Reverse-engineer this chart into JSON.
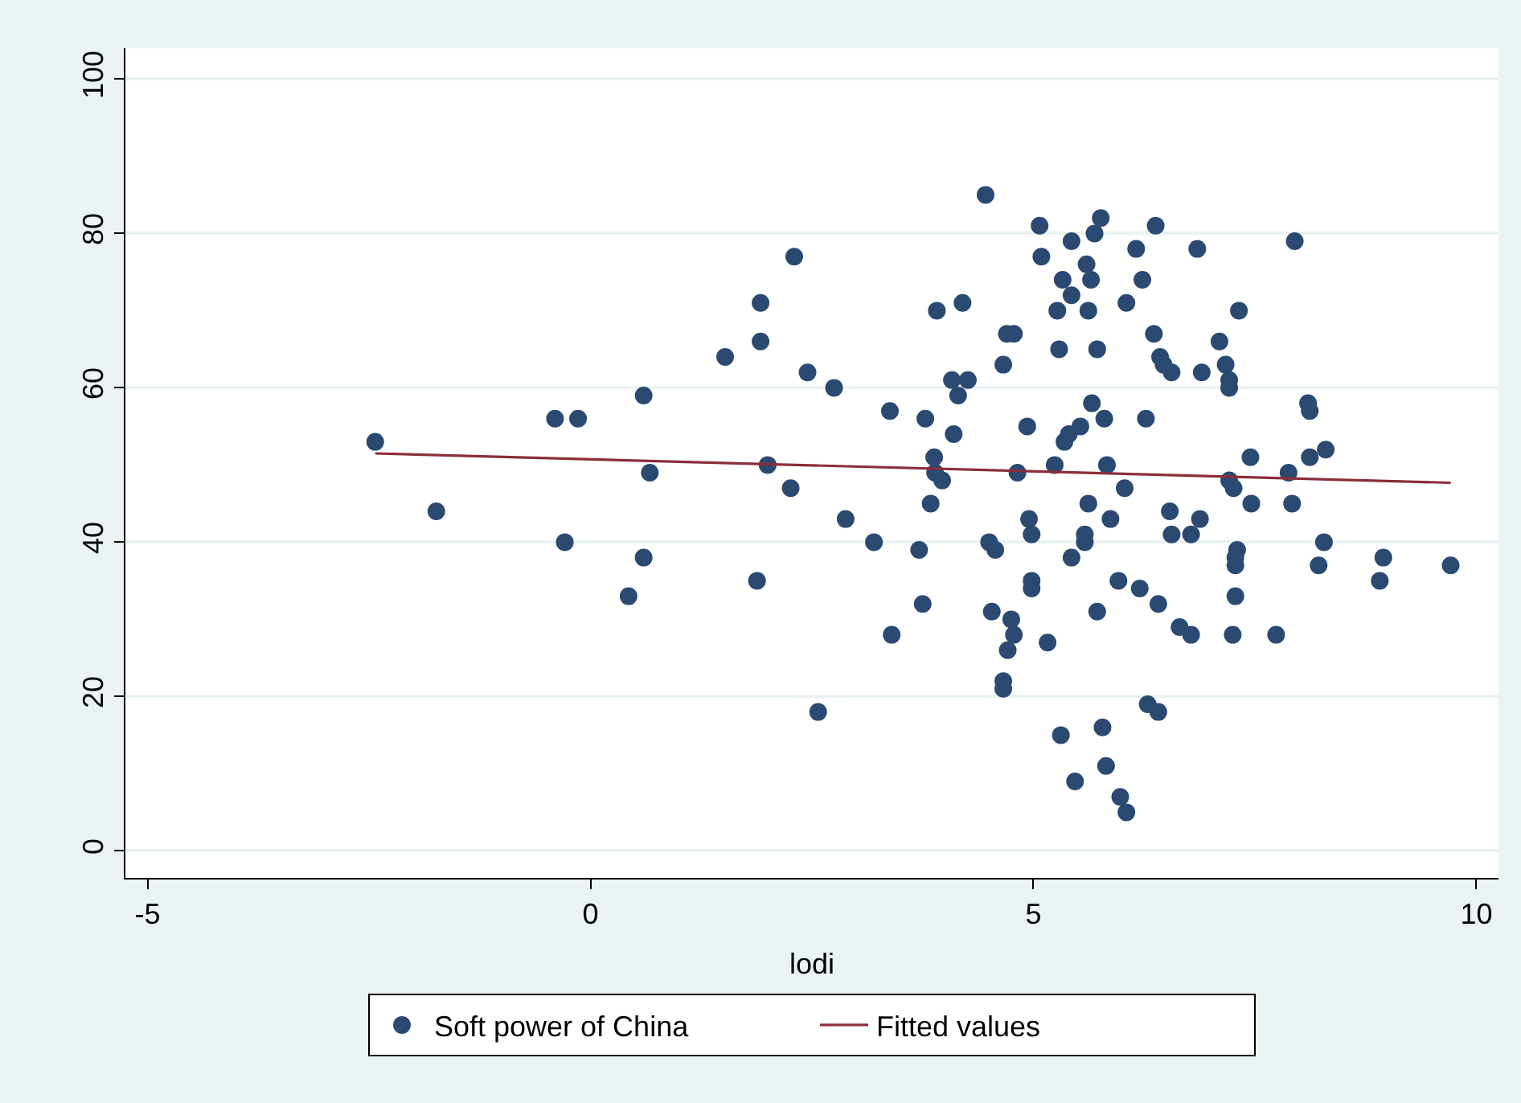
{
  "chart_data": {
    "type": "scatter",
    "xlabel": "lodi",
    "xlim": [
      -5.25,
      10.25
    ],
    "ylim": [
      -3.5,
      104
    ],
    "xticks": [
      -5,
      0,
      5,
      10
    ],
    "yticks": [
      0,
      20,
      40,
      60,
      80,
      100
    ],
    "grid": "y",
    "legend": "bottom",
    "marker": "circle",
    "series": [
      {
        "name": "Soft power of China",
        "color": "#2b4a72",
        "x": [
          -2.43,
          -1.74,
          -0.4,
          -0.14,
          -0.29,
          0.6,
          0.67,
          0.6,
          0.43,
          1.52,
          1.92,
          1.92,
          2.0,
          1.88,
          2.26,
          2.3,
          2.45,
          2.57,
          2.75,
          2.88,
          3.2,
          3.38,
          3.4,
          3.71,
          3.75,
          3.78,
          3.88,
          3.91,
          3.84,
          3.89,
          3.97,
          4.1,
          4.15,
          4.2,
          4.26,
          4.08,
          4.46,
          4.5,
          4.53,
          4.57,
          4.66,
          4.66,
          4.66,
          4.7,
          4.78,
          4.71,
          4.75,
          4.78,
          4.82,
          4.93,
          4.95,
          4.98,
          4.98,
          4.98,
          5.07,
          5.09,
          5.16,
          5.24,
          5.27,
          5.29,
          5.31,
          5.33,
          5.35,
          5.4,
          5.43,
          5.43,
          5.43,
          5.47,
          5.53,
          5.58,
          5.6,
          5.62,
          5.65,
          5.62,
          5.66,
          5.58,
          5.69,
          5.76,
          5.72,
          5.72,
          5.78,
          5.82,
          5.8,
          5.83,
          5.87,
          5.96,
          5.98,
          6.03,
          6.05,
          6.05,
          6.2,
          6.16,
          6.23,
          6.27,
          6.29,
          6.38,
          6.36,
          6.41,
          6.41,
          6.43,
          6.47,
          6.54,
          6.56,
          6.56,
          6.65,
          6.78,
          6.78,
          6.85,
          6.88,
          6.9,
          7.1,
          7.17,
          7.21,
          7.21,
          7.21,
          7.26,
          7.25,
          7.28,
          7.28,
          7.28,
          7.3,
          7.32,
          7.45,
          7.46,
          7.74,
          7.88,
          7.92,
          7.95,
          8.1,
          8.12,
          8.12,
          8.3,
          8.22,
          8.28,
          8.91,
          8.95,
          9.71
        ],
        "values": [
          53,
          44,
          56,
          56,
          40,
          59,
          49,
          38,
          33,
          64,
          71,
          66,
          50,
          35,
          47,
          77,
          62,
          18,
          60,
          43,
          40,
          57,
          28,
          39,
          32,
          56,
          51,
          70,
          45,
          49,
          48,
          54,
          59,
          71,
          61,
          61,
          85,
          40,
          31,
          39,
          63,
          22,
          21,
          67,
          67,
          26,
          30,
          28,
          49,
          55,
          43,
          41,
          35,
          34,
          81,
          77,
          27,
          50,
          70,
          65,
          15,
          74,
          53,
          54,
          79,
          72,
          38,
          9,
          55,
          41,
          76,
          45,
          74,
          70,
          58,
          40,
          80,
          82,
          65,
          31,
          16,
          11,
          56,
          50,
          43,
          35,
          7,
          47,
          71,
          5,
          34,
          78,
          74,
          56,
          19,
          81,
          67,
          18,
          32,
          64,
          63,
          44,
          41,
          62,
          29,
          28,
          41,
          78,
          43,
          62,
          66,
          63,
          61,
          60,
          48,
          47,
          28,
          33,
          38,
          37,
          39,
          70,
          51,
          45,
          28,
          49,
          45,
          79,
          58,
          57,
          51,
          52,
          37,
          40,
          35,
          38,
          37
        ]
      },
      {
        "name": "Fitted values",
        "type": "line",
        "color": "#8b2e38",
        "line_style": "solid",
        "marker": "none",
        "x": [
          -2.43,
          9.71
        ],
        "values": [
          51.5,
          47.7
        ]
      }
    ]
  }
}
